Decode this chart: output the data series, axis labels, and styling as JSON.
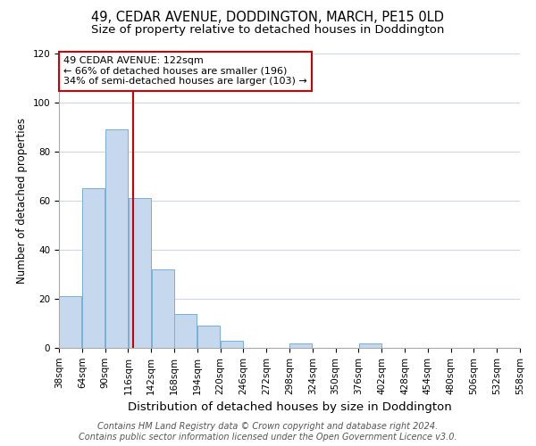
{
  "title": "49, CEDAR AVENUE, DODDINGTON, MARCH, PE15 0LD",
  "subtitle": "Size of property relative to detached houses in Doddington",
  "xlabel": "Distribution of detached houses by size in Doddington",
  "ylabel": "Number of detached properties",
  "bin_edges": [
    38,
    64,
    90,
    116,
    142,
    168,
    194,
    220,
    246,
    272,
    298,
    324,
    350,
    376,
    402,
    428,
    454,
    480,
    506,
    532,
    558
  ],
  "bar_heights": [
    21,
    65,
    89,
    61,
    32,
    14,
    9,
    3,
    0,
    0,
    2,
    0,
    0,
    2,
    0,
    0,
    0,
    0,
    0,
    0
  ],
  "bar_color": "#c5d8ed",
  "bar_edgecolor": "#7aafd4",
  "property_line_x": 122,
  "property_line_color": "#cc0000",
  "annotation_text": "49 CEDAR AVENUE: 122sqm\n← 66% of detached houses are smaller (196)\n34% of semi-detached houses are larger (103) →",
  "annotation_box_edgecolor": "#cc0000",
  "annotation_box_facecolor": "#ffffff",
  "ylim": [
    0,
    120
  ],
  "yticks": [
    0,
    20,
    40,
    60,
    80,
    100,
    120
  ],
  "footer_line1": "Contains HM Land Registry data © Crown copyright and database right 2024.",
  "footer_line2": "Contains public sector information licensed under the Open Government Licence v3.0.",
  "title_fontsize": 10.5,
  "subtitle_fontsize": 9.5,
  "xlabel_fontsize": 9.5,
  "ylabel_fontsize": 8.5,
  "tick_fontsize": 7.5,
  "annotation_fontsize": 8,
  "footer_fontsize": 7,
  "background_color": "#ffffff",
  "grid_color": "#d0d8e8"
}
